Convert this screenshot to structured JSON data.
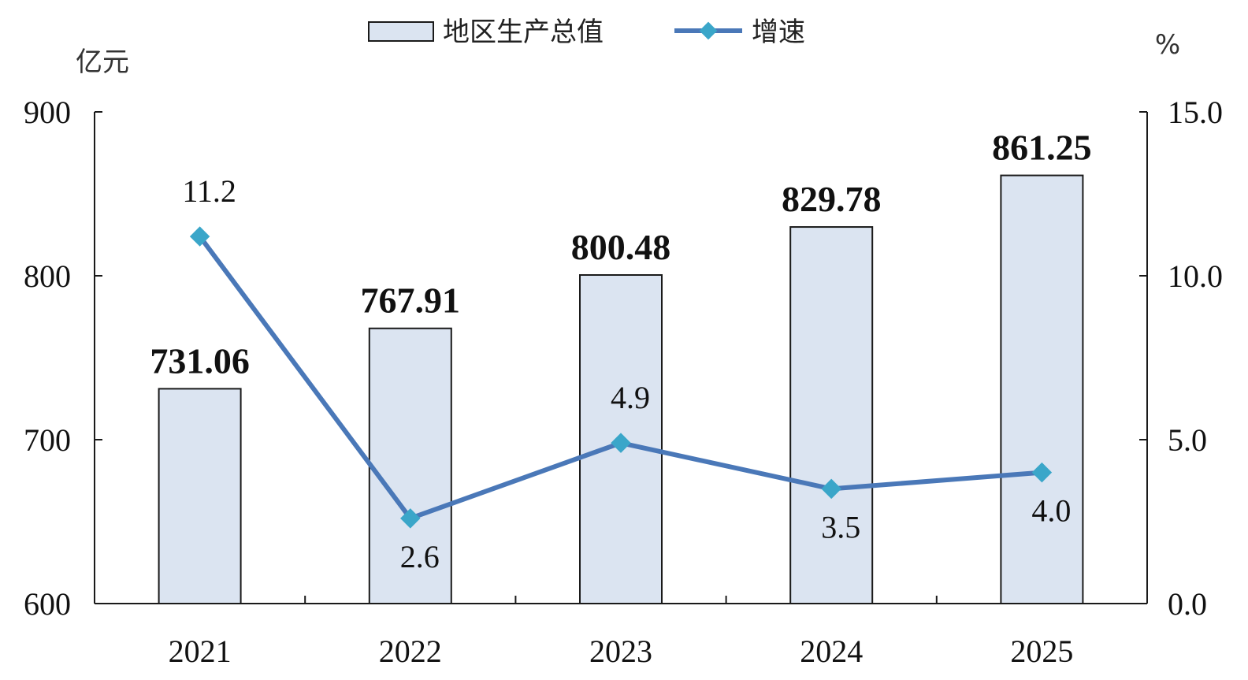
{
  "legend": {
    "bar_label": "地区生产总值",
    "line_label": "增速"
  },
  "axes": {
    "left_unit": "亿元",
    "right_unit": "%"
  },
  "colors": {
    "bar_fill": "#dbe4f1",
    "bar_stroke": "#1a1a1a",
    "line": "#4a78b8",
    "marker": "#3aa6c9",
    "axis": "#1a1a1a"
  },
  "chart_data": {
    "type": "bar",
    "categories": [
      "2021",
      "2022",
      "2023",
      "2024",
      "2025"
    ],
    "series": [
      {
        "name": "地区生产总值",
        "type": "bar",
        "axis": "left",
        "values": [
          731.06,
          767.91,
          800.48,
          829.78,
          861.25
        ],
        "labels": [
          "731.06",
          "767.91",
          "800.48",
          "829.78",
          "861.25"
        ]
      },
      {
        "name": "增速",
        "type": "line",
        "axis": "right",
        "values": [
          11.2,
          2.6,
          4.9,
          3.5,
          4.0
        ],
        "labels": [
          "11.2",
          "2.6",
          "4.9",
          "3.5",
          "4.0"
        ]
      }
    ],
    "ylabel": "亿元",
    "ylabel_right": "%",
    "ylim": [
      600,
      900
    ],
    "ylim_right": [
      0,
      15
    ],
    "yticks": [
      "900",
      "800",
      "700",
      "600"
    ],
    "yticks_right": [
      "15.0",
      "10.0",
      "5.0",
      "0.0"
    ],
    "legend_position": "top-center",
    "grid": false
  }
}
